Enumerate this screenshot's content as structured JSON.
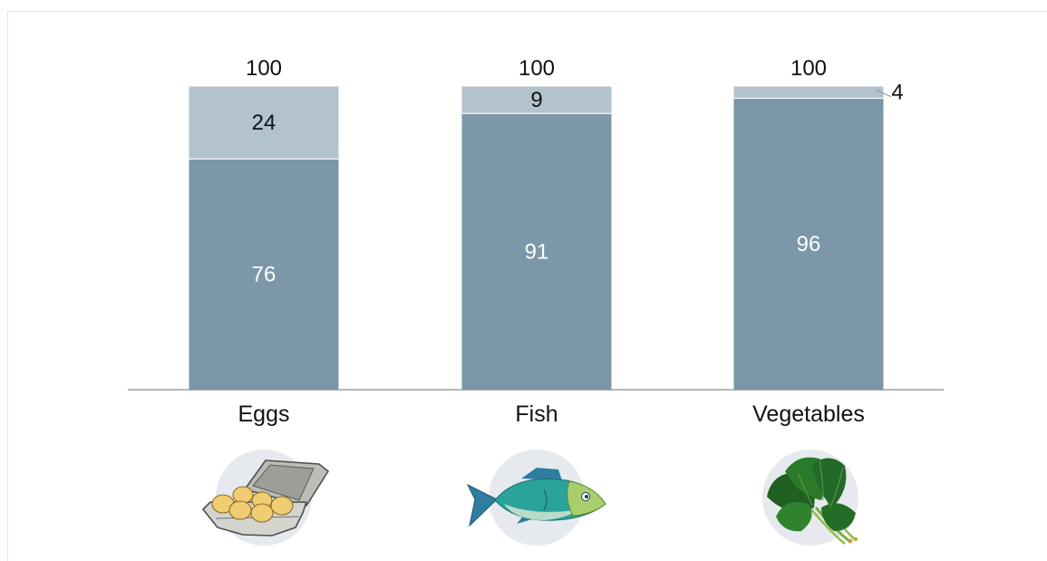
{
  "chart_data": {
    "type": "bar",
    "stacked": true,
    "categories": [
      "Eggs",
      "Fish",
      "Vegetables"
    ],
    "series": [
      {
        "values": [
          76,
          91,
          96
        ],
        "color": "#7b97a8"
      },
      {
        "values": [
          24,
          9,
          4
        ],
        "color": "#b3c3ce"
      }
    ],
    "totals": [
      "100",
      "100",
      "100"
    ],
    "ylim": [
      0,
      100
    ],
    "grid": false,
    "legend": "none",
    "icons": [
      "egg-carton-icon",
      "fish-icon",
      "spinach-icon"
    ]
  }
}
